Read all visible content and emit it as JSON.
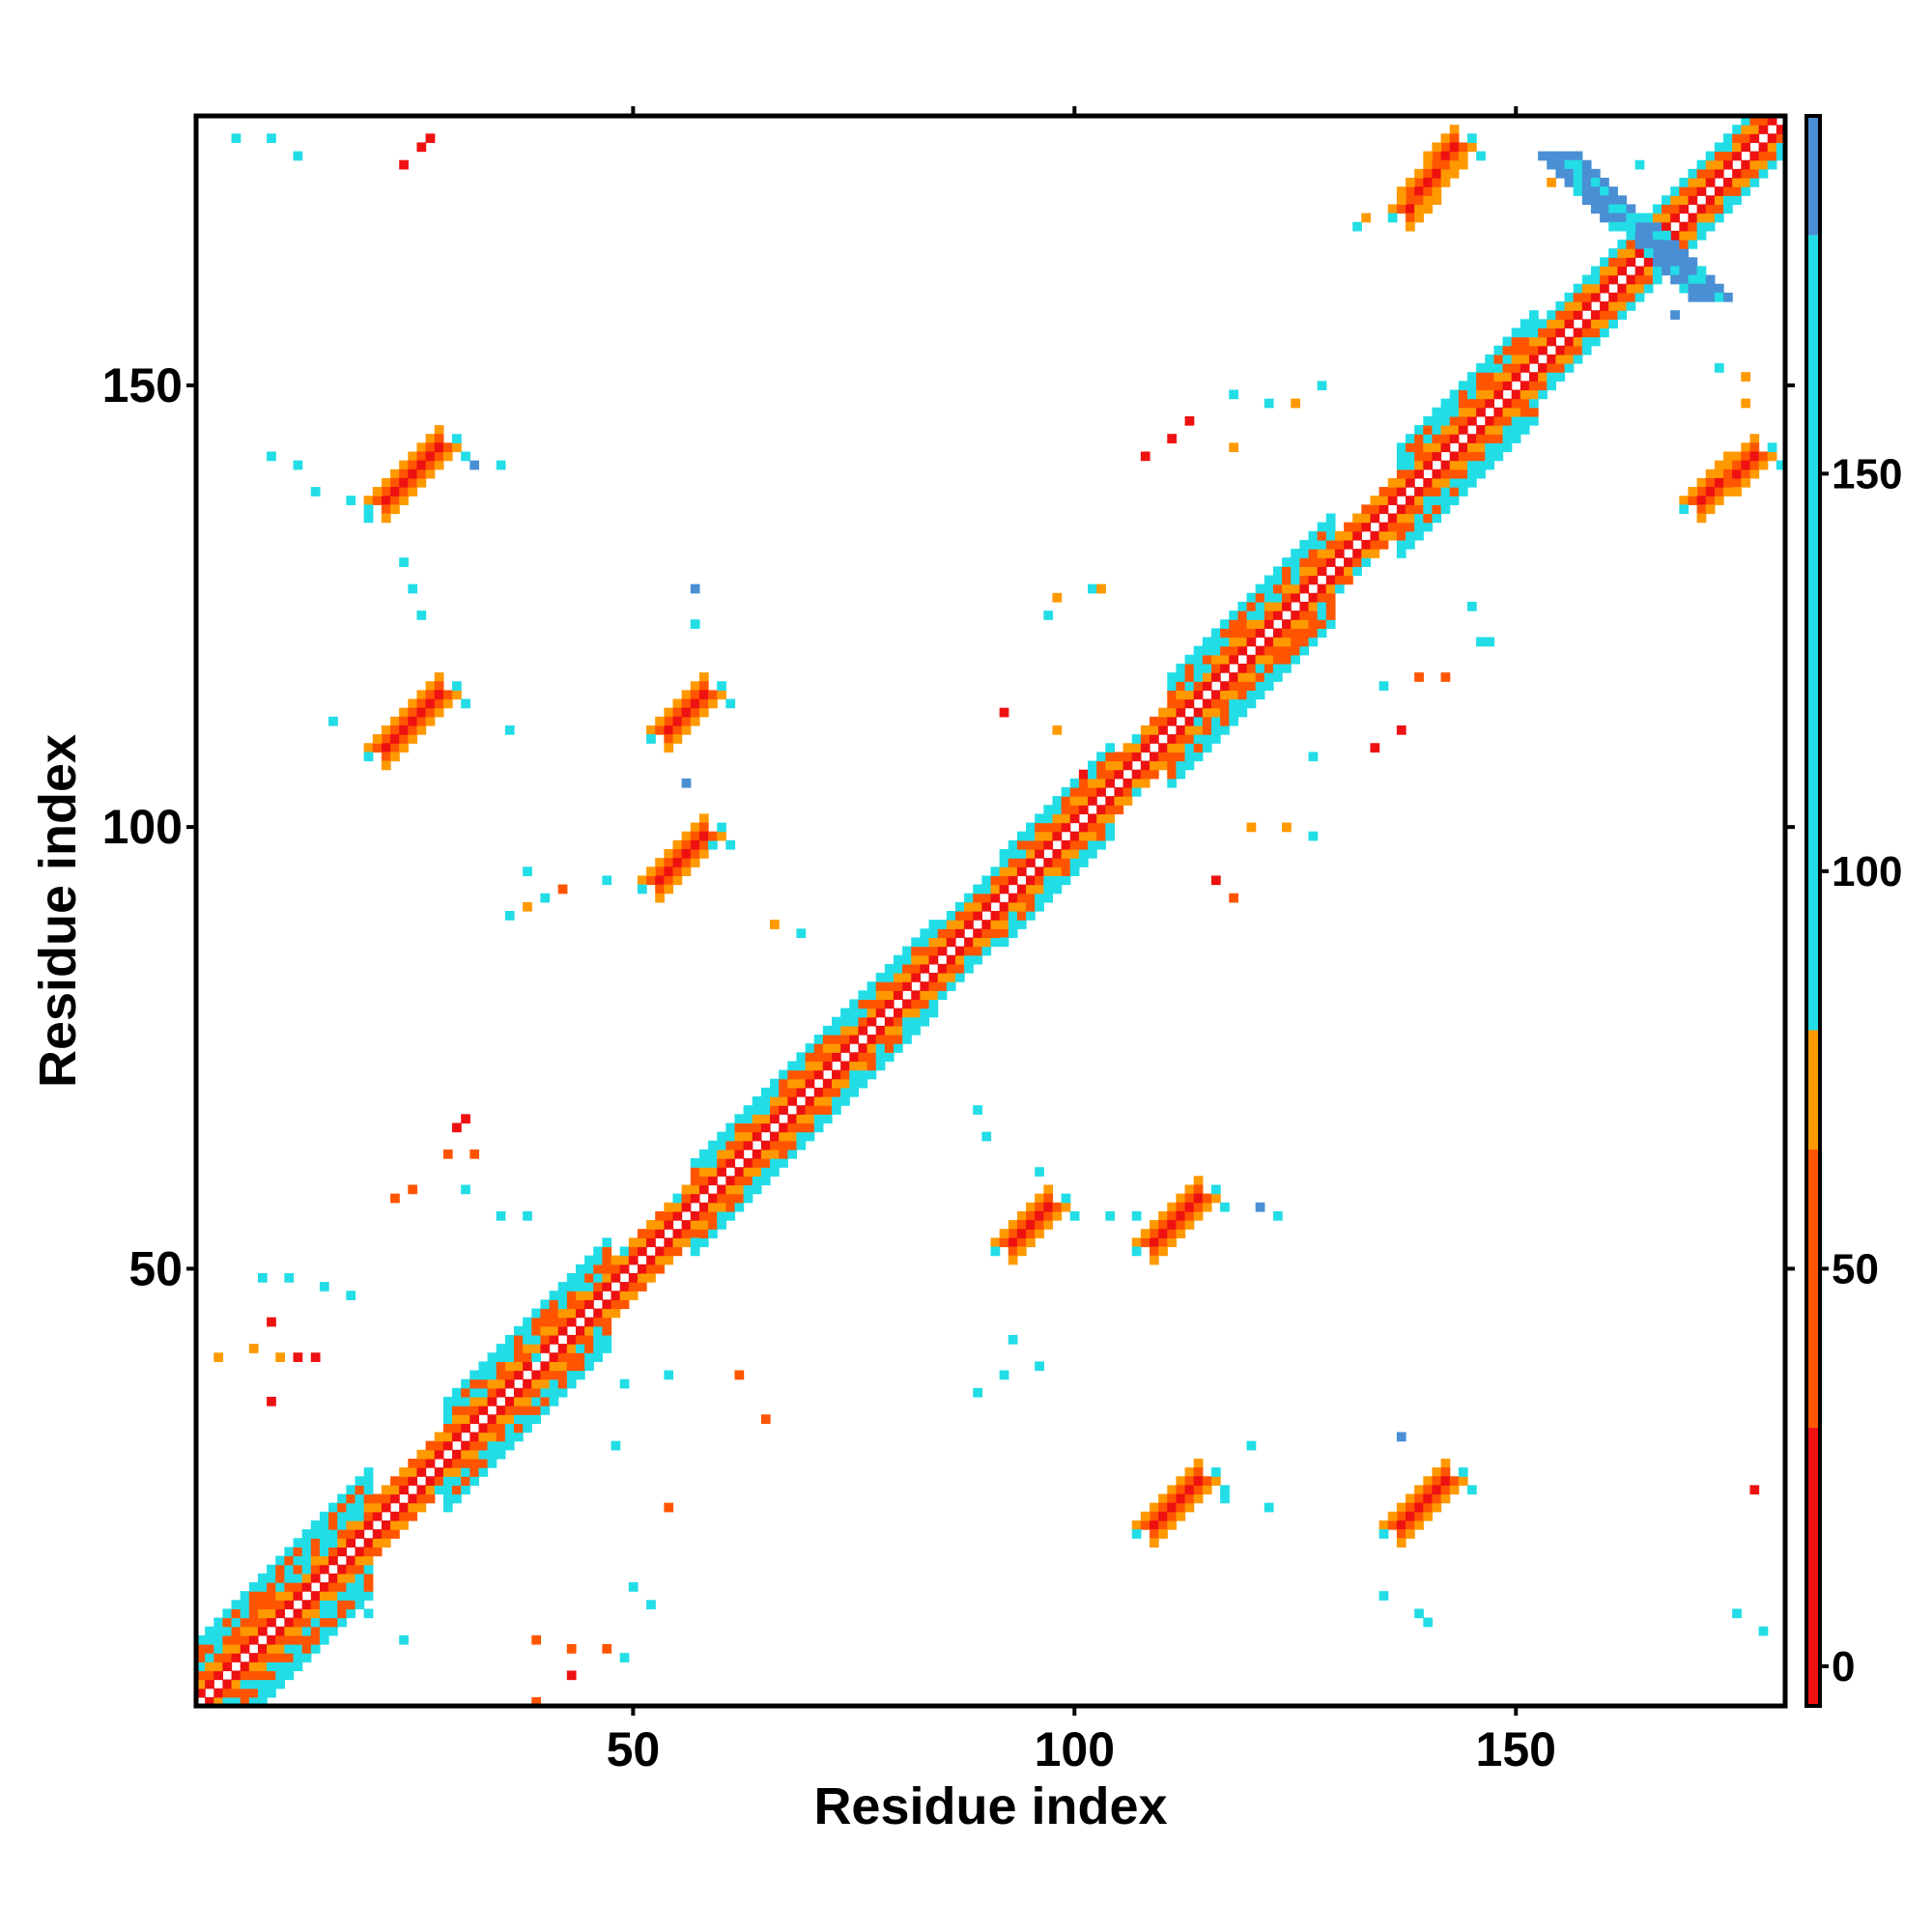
{
  "chart_data": {
    "type": "heatmap",
    "title": "",
    "xlabel": "Residue index",
    "ylabel": "Residue index",
    "xlim": [
      1,
      180
    ],
    "ylim": [
      1,
      180
    ],
    "x_ticks": [
      50,
      100,
      150
    ],
    "y_ticks": [
      50,
      100,
      150
    ],
    "colorbar": {
      "ticks": [
        0,
        50,
        100,
        150
      ],
      "range": [
        -5,
        195
      ],
      "bands": [
        {
          "from": -5,
          "to": 30,
          "color": "#ee1111"
        },
        {
          "from": 30,
          "to": 65,
          "color": "#ff5500"
        },
        {
          "from": 65,
          "to": 80,
          "color": "#ff9900"
        },
        {
          "from": 80,
          "to": 180,
          "color": "#22dde6"
        },
        {
          "from": 180,
          "to": 195,
          "color": "#4a8fd4"
        }
      ]
    },
    "diagonal_segments": [
      {
        "from": 1,
        "to": 20,
        "halfwidth": 7
      },
      {
        "from": 20,
        "to": 29,
        "halfwidth": 3
      },
      {
        "from": 29,
        "to": 47,
        "halfwidth": 6
      },
      {
        "from": 47,
        "to": 57,
        "halfwidth": 3
      },
      {
        "from": 57,
        "to": 73,
        "halfwidth": 5
      },
      {
        "from": 73,
        "to": 84,
        "halfwidth": 5
      },
      {
        "from": 84,
        "to": 92,
        "halfwidth": 4
      },
      {
        "from": 92,
        "to": 104,
        "halfwidth": 5
      },
      {
        "from": 104,
        "to": 111,
        "halfwidth": 3
      },
      {
        "from": 111,
        "to": 129,
        "halfwidth": 6
      },
      {
        "from": 129,
        "to": 137,
        "halfwidth": 3
      },
      {
        "from": 137,
        "to": 152,
        "halfwidth": 6
      },
      {
        "from": 152,
        "to": 162,
        "halfwidth": 4
      },
      {
        "from": 162,
        "to": 180,
        "halfwidth": 4
      }
    ],
    "contact_blobs": [
      {
        "x1": 22,
        "y1": 137,
        "x2": 28,
        "y2": 143,
        "w": 2,
        "value": 10
      },
      {
        "x1": 22,
        "y1": 109,
        "x2": 28,
        "y2": 115,
        "w": 2,
        "value": 10
      },
      {
        "x1": 54,
        "y1": 111,
        "x2": 58,
        "y2": 115,
        "w": 2,
        "value": 15
      },
      {
        "x1": 53,
        "y1": 94,
        "x2": 58,
        "y2": 99,
        "w": 2,
        "value": 15
      },
      {
        "x1": 138,
        "y1": 170,
        "x2": 143,
        "y2": 177,
        "w": 2,
        "value": 10
      },
      {
        "x1": 93,
        "y1": 53,
        "x2": 97,
        "y2": 57,
        "w": 2,
        "value": 15
      },
      {
        "x1": 109,
        "y1": 53,
        "x2": 114,
        "y2": 58,
        "w": 2,
        "value": 15
      },
      {
        "x1": 109,
        "y1": 21,
        "x2": 114,
        "y2": 26,
        "w": 2,
        "value": 10
      },
      {
        "x1": 137,
        "y1": 21,
        "x2": 142,
        "y2": 26,
        "w": 2,
        "value": 10
      },
      {
        "x1": 171,
        "y1": 137,
        "x2": 177,
        "y2": 142,
        "w": 2,
        "value": 10
      }
    ],
    "crossing_bands": [
      {
        "x1": 155,
        "y1": 176,
        "x2": 172,
        "y2": 160,
        "halfwidth": 2,
        "value": 185
      }
    ],
    "sparse_points": [
      [
        5,
        178,
        110
      ],
      [
        9,
        178,
        110
      ],
      [
        12,
        176,
        110
      ],
      [
        24,
        175,
        20
      ],
      [
        26,
        177,
        20
      ],
      [
        27,
        178,
        20
      ],
      [
        9,
        142,
        110
      ],
      [
        12,
        141,
        110
      ],
      [
        14,
        138,
        110
      ],
      [
        18,
        137,
        110
      ],
      [
        20,
        135,
        110
      ],
      [
        32,
        141,
        185
      ],
      [
        35,
        141,
        110
      ],
      [
        24,
        130,
        110
      ],
      [
        25,
        127,
        110
      ],
      [
        26,
        124,
        110
      ],
      [
        16,
        112,
        110
      ],
      [
        31,
        114,
        110
      ],
      [
        36,
        111,
        110
      ],
      [
        57,
        127,
        185
      ],
      [
        57,
        123,
        110
      ],
      [
        56,
        105,
        185
      ],
      [
        59,
        98,
        110
      ],
      [
        60,
        100,
        110
      ],
      [
        38,
        95,
        110
      ],
      [
        40,
        92,
        110
      ],
      [
        42,
        93,
        60
      ],
      [
        47,
        94,
        110
      ],
      [
        36,
        90,
        110
      ],
      [
        38,
        91,
        70
      ],
      [
        66,
        89,
        70
      ],
      [
        69,
        88,
        110
      ],
      [
        30,
        66,
        20
      ],
      [
        31,
        67,
        20
      ],
      [
        29,
        63,
        60
      ],
      [
        32,
        63,
        60
      ],
      [
        23,
        58,
        60
      ],
      [
        25,
        59,
        60
      ],
      [
        8,
        49,
        110
      ],
      [
        11,
        49,
        110
      ],
      [
        15,
        48,
        110
      ],
      [
        18,
        47,
        110
      ],
      [
        3,
        40,
        70
      ],
      [
        7,
        41,
        70
      ],
      [
        10,
        40,
        70
      ],
      [
        12,
        40,
        20
      ],
      [
        9,
        44,
        20
      ],
      [
        9,
        35,
        20
      ],
      [
        14,
        40,
        20
      ],
      [
        39,
        40,
        110
      ],
      [
        49,
        37,
        110
      ],
      [
        54,
        38,
        110
      ],
      [
        62,
        38,
        60
      ],
      [
        65,
        33,
        60
      ],
      [
        31,
        59,
        110
      ],
      [
        35,
        56,
        110
      ],
      [
        38,
        56,
        110
      ],
      [
        48,
        30,
        110
      ],
      [
        54,
        23,
        60
      ],
      [
        50,
        14,
        110
      ],
      [
        52,
        12,
        110
      ],
      [
        39,
        8,
        60
      ],
      [
        43,
        7,
        60
      ],
      [
        47,
        7,
        60
      ],
      [
        49,
        6,
        110
      ],
      [
        43,
        4,
        20
      ],
      [
        39,
        1,
        60
      ],
      [
        24,
        8,
        110
      ],
      [
        20,
        11,
        110
      ],
      [
        89,
        68,
        110
      ],
      [
        90,
        65,
        110
      ],
      [
        93,
        42,
        110
      ],
      [
        92,
        38,
        110
      ],
      [
        89,
        36,
        110
      ],
      [
        96,
        39,
        110
      ],
      [
        96,
        61,
        110
      ],
      [
        104,
        56,
        110
      ],
      [
        107,
        56,
        110
      ],
      [
        121,
        57,
        185
      ],
      [
        123,
        56,
        110
      ],
      [
        120,
        30,
        110
      ],
      [
        117,
        24,
        110
      ],
      [
        122,
        23,
        110
      ],
      [
        135,
        13,
        110
      ],
      [
        139,
        11,
        110
      ],
      [
        140,
        10,
        110
      ],
      [
        137,
        31,
        185
      ],
      [
        175,
        11,
        110
      ],
      [
        178,
        9,
        110
      ],
      [
        177,
        25,
        20
      ],
      [
        173,
        152,
        110
      ],
      [
        176,
        151,
        70
      ],
      [
        176,
        148,
        70
      ],
      [
        168,
        158,
        185
      ],
      [
        164,
        175,
        110
      ],
      [
        154,
        173,
        70
      ],
      [
        102,
        127,
        110
      ],
      [
        98,
        126,
        70
      ],
      [
        97,
        124,
        110
      ],
      [
        103,
        127,
        70
      ],
      [
        111,
        144,
        20
      ],
      [
        113,
        146,
        20
      ],
      [
        108,
        142,
        20
      ],
      [
        118,
        149,
        110
      ],
      [
        122,
        148,
        110
      ],
      [
        125,
        148,
        70
      ],
      [
        118,
        143,
        70
      ],
      [
        128,
        150,
        110
      ],
      [
        145,
        125,
        110
      ],
      [
        147,
        121,
        110
      ],
      [
        146,
        121,
        110
      ],
      [
        142,
        117,
        60
      ],
      [
        139,
        117,
        60
      ],
      [
        135,
        116,
        110
      ],
      [
        114,
        112,
        110
      ],
      [
        127,
        108,
        110
      ],
      [
        137,
        111,
        20
      ],
      [
        134,
        109,
        20
      ],
      [
        120,
        100,
        70
      ],
      [
        124,
        100,
        70
      ],
      [
        127,
        99,
        110
      ],
      [
        118,
        92,
        60
      ],
      [
        116,
        94,
        20
      ],
      [
        132,
        168,
        110
      ],
      [
        133,
        169,
        70
      ],
      [
        101,
        106,
        20
      ],
      [
        98,
        111,
        70
      ],
      [
        92,
        113,
        20
      ]
    ]
  }
}
